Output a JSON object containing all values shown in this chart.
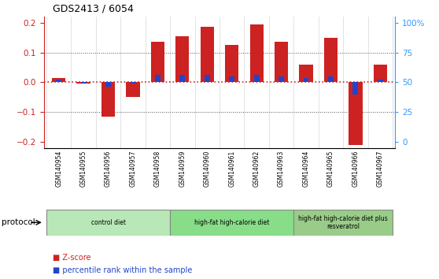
{
  "title": "GDS2413 / 6054",
  "samples": [
    "GSM140954",
    "GSM140955",
    "GSM140956",
    "GSM140957",
    "GSM140958",
    "GSM140959",
    "GSM140960",
    "GSM140961",
    "GSM140962",
    "GSM140963",
    "GSM140964",
    "GSM140965",
    "GSM140966",
    "GSM140967"
  ],
  "zscore": [
    0.015,
    -0.005,
    -0.115,
    -0.05,
    0.135,
    0.155,
    0.185,
    0.125,
    0.195,
    0.135,
    0.06,
    0.15,
    -0.21,
    0.06
  ],
  "pct_rank": [
    0.01,
    -0.005,
    -0.015,
    -0.003,
    0.025,
    0.025,
    0.025,
    0.02,
    0.025,
    0.02,
    0.015,
    0.02,
    -0.04,
    0.01
  ],
  "zscore_color": "#cc2222",
  "pct_color": "#2244cc",
  "zero_line_color": "#cc2222",
  "grid_color": "#555555",
  "bg_color": "#ffffff",
  "ylim": [
    -0.22,
    0.22
  ],
  "yticks_left": [
    -0.2,
    -0.1,
    0.0,
    0.1,
    0.2
  ],
  "yticks_right": [
    0,
    25,
    50,
    75,
    100
  ],
  "yticks_right_vals": [
    -0.2,
    -0.1,
    0.0,
    0.1,
    0.2
  ],
  "protocol_groups": [
    {
      "label": "control diet",
      "start": 0,
      "end": 4,
      "color": "#b8e8b8"
    },
    {
      "label": "high-fat high-calorie diet",
      "start": 5,
      "end": 9,
      "color": "#88dd88"
    },
    {
      "label": "high-fat high-calorie diet plus\nresveratrol",
      "start": 10,
      "end": 13,
      "color": "#99cc88"
    }
  ],
  "legend_zscore": "Z-score",
  "legend_pct": "percentile rank within the sample",
  "protocol_label": "protocol"
}
